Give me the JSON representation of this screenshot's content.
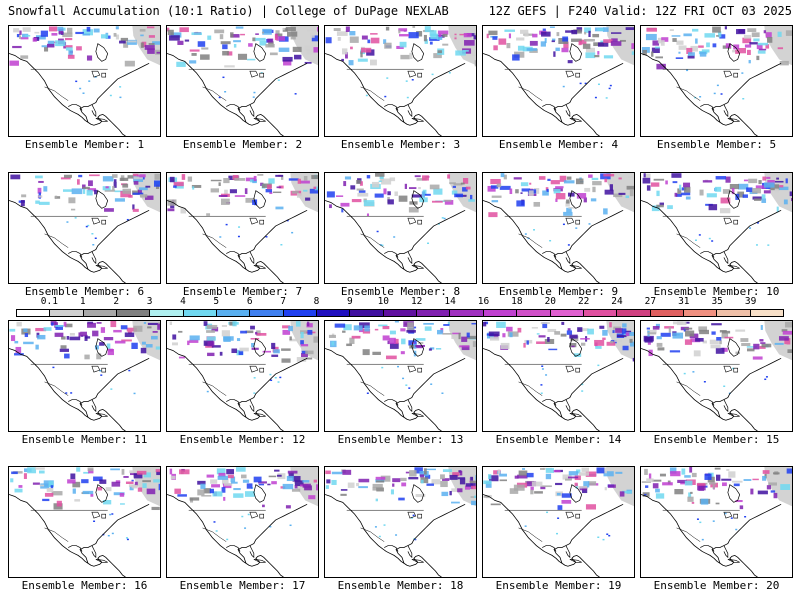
{
  "header": {
    "left_title": "Snowfall Accumulation (10:1 Ratio) | College of DuPage NEXLAB",
    "right_title": "12Z GEFS | F240 Valid: 12Z FRI OCT 03 2025"
  },
  "panel_label_prefix": "Ensemble Member:",
  "members": [
    "1",
    "2",
    "3",
    "4",
    "5",
    "6",
    "7",
    "8",
    "9",
    "10",
    "11",
    "12",
    "13",
    "14",
    "15",
    "16",
    "17",
    "18",
    "19",
    "20"
  ],
  "colorbar": {
    "labels": [
      "0.1",
      "1",
      "2",
      "3",
      "4",
      "5",
      "6",
      "7",
      "8",
      "9",
      "10",
      "12",
      "14",
      "16",
      "18",
      "20",
      "22",
      "24",
      "27",
      "31",
      "35",
      "39"
    ],
    "colors": [
      "#ffffff",
      "#d0d0d0",
      "#a8a8a8",
      "#808080",
      "#b0f0f0",
      "#70d8f0",
      "#5ab0f0",
      "#4080f0",
      "#2040f0",
      "#2010c0",
      "#4010a0",
      "#6010a0",
      "#8020b0",
      "#a030c0",
      "#c040d0",
      "#d050c8",
      "#e060d0",
      "#e050a0",
      "#d04080",
      "#e06060",
      "#f09080",
      "#f0c0a8",
      "#f8e0c8"
    ]
  }
}
